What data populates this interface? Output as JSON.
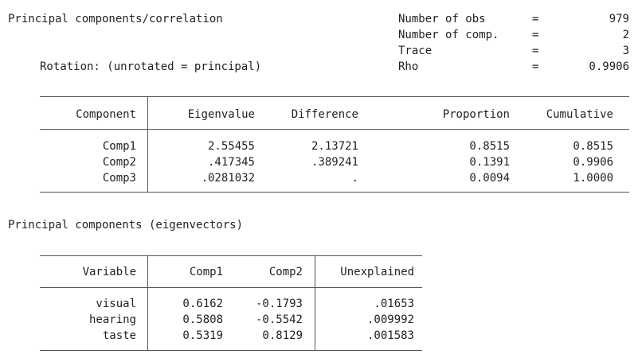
{
  "header": {
    "title": "Principal components/correlation",
    "rotation": "Rotation: (unrotated = principal)",
    "stats": [
      {
        "label": "Number of obs",
        "eq": "=",
        "value": "979"
      },
      {
        "label": "Number of comp.",
        "eq": "=",
        "value": "2"
      },
      {
        "label": "Trace",
        "eq": "=",
        "value": "3"
      },
      {
        "label": "Rho",
        "eq": "=",
        "value": "0.9906"
      }
    ]
  },
  "table1": {
    "headers": [
      "Component",
      "Eigenvalue",
      "Difference",
      "Proportion",
      "Cumulative"
    ],
    "rows": [
      [
        "Comp1",
        "2.55455",
        "2.13721",
        "0.8515",
        "0.8515"
      ],
      [
        "Comp2",
        ".417345",
        ".389241",
        "0.1391",
        "0.9906"
      ],
      [
        "Comp3",
        ".0281032",
        ".",
        "0.0094",
        "1.0000"
      ]
    ]
  },
  "section2_title": "Principal components (eigenvectors)",
  "table2": {
    "headers": [
      "Variable",
      "Comp1",
      "Comp2",
      "Unexplained"
    ],
    "rows": [
      [
        "visual",
        "0.6162",
        "-0.1793",
        ".01653"
      ],
      [
        "hearing",
        "0.5808",
        "-0.5542",
        ".009992"
      ],
      [
        "taste",
        "0.5319",
        "0.8129",
        ".001583"
      ]
    ]
  }
}
